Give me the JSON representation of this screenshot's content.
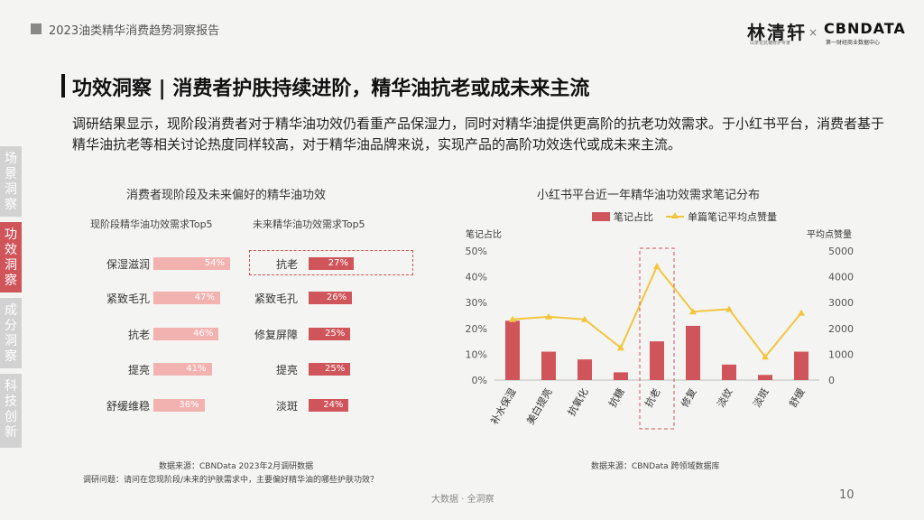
{
  "header": {
    "report_title": "2023油类精华消费趋势洞察报告"
  },
  "brands": {
    "brand1": "林清轩",
    "brand1_sub": "山茶花抗皱修护专家",
    "times": "×",
    "brand2": "CBNDATA",
    "brand2_sub": "第一财经商业数据中心"
  },
  "heading": "功效洞察 | 消费者护肤持续进阶，精华油抗老或成未来主流",
  "intro": "调研结果显示，现阶段消费者对于精华油功效仍看重产品保湿力，同时对精华油提供更高阶的抗老功效需求。于小红书平台，消费者基于精华油抗老等相关讨论热度同样较高，对于精华油品牌来说，实现产品的高阶功效迭代或成未来主流。",
  "sidebar": [
    {
      "label": "场景洞察",
      "active": false
    },
    {
      "label": "功效洞察",
      "active": true
    },
    {
      "label": "成分洞察",
      "active": false
    },
    {
      "label": "科技创新",
      "active": false
    }
  ],
  "left_title": "消费者现阶段及未来偏好的精华油功效",
  "left_source": "数据来源：CBNData 2023年2月调研数据",
  "left_question": "调研问题：请问在您现阶段/未来的护肤需求中，主要偏好精华油的哪些护肤功效？",
  "right_title": "小红书平台近一年精华油功效需求笔记分布",
  "right_source": "数据来源：CBNData 跨领域数据库",
  "footer": "大数据 · 全洞察",
  "page_number": "10",
  "colors": {
    "accent": "#d0555b",
    "bar_light": "#f2b3b0",
    "line": "#f2c63c"
  },
  "chart_data": [
    {
      "type": "bar",
      "title": "现阶段精华油功效需求Top5",
      "categories": [
        "保湿滋润",
        "紧致毛孔",
        "抗老",
        "提亮",
        "舒缓维稳"
      ],
      "values": [
        54,
        47,
        46,
        41,
        36
      ],
      "labels": [
        "54%",
        "47%",
        "46%",
        "41%",
        "36%"
      ],
      "orientation": "horizontal"
    },
    {
      "type": "bar",
      "title": "未来精华油功效需求Top5",
      "categories": [
        "抗老",
        "紧致毛孔",
        "修复屏障",
        "提亮",
        "淡斑"
      ],
      "values": [
        27,
        26,
        25,
        25,
        24
      ],
      "labels": [
        "27%",
        "26%",
        "25%",
        "25%",
        "24%"
      ],
      "orientation": "horizontal",
      "highlight": "抗老"
    },
    {
      "type": "bar",
      "categories": [
        "补水保湿",
        "美白提亮",
        "抗氧化",
        "抗糖",
        "抗老",
        "修复",
        "淡纹",
        "淡斑",
        "舒缓"
      ],
      "series": [
        {
          "name": "笔记占比",
          "axis": "left",
          "values": [
            23,
            11,
            8,
            3,
            15,
            21,
            6,
            2,
            11
          ]
        },
        {
          "name": "单篇笔记平均点赞量",
          "axis": "right",
          "type": "line",
          "values": [
            2350,
            2450,
            2350,
            1250,
            4400,
            2650,
            2750,
            900,
            2600
          ]
        }
      ],
      "ylabel": "笔记占比",
      "y2label": "平均点赞量",
      "ylim": [
        0,
        50
      ],
      "y2lim": [
        0,
        5000
      ],
      "yticks": [
        "0%",
        "10%",
        "20%",
        "30%",
        "40%",
        "50%"
      ],
      "y2ticks": [
        "0",
        "1000",
        "2000",
        "3000",
        "4000",
        "5000"
      ],
      "legend": "top",
      "highlight": "抗老"
    }
  ]
}
